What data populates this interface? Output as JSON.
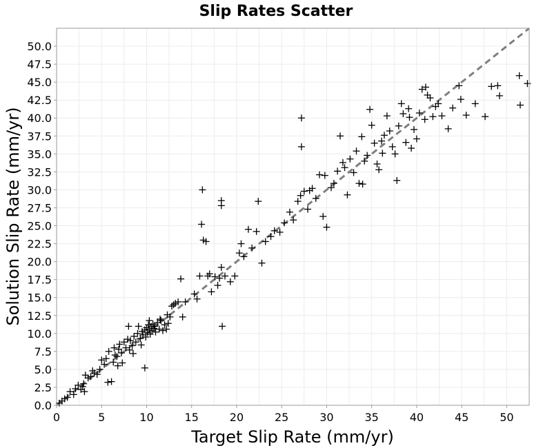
{
  "chart_data": {
    "type": "scatter",
    "title": "Slip Rates Scatter",
    "xlabel": "Target Slip Rate (mm/yr)",
    "ylabel": "Solution Slip Rate (mm/yr)",
    "xlim": [
      0,
      52.5
    ],
    "ylim": [
      0,
      52.5
    ],
    "xticks": [
      "0",
      "5",
      "10",
      "15",
      "20",
      "25",
      "30",
      "35",
      "40",
      "45",
      "50"
    ],
    "yticks": [
      "0.0",
      "2.5",
      "5.0",
      "7.5",
      "10.0",
      "12.5",
      "15.0",
      "17.5",
      "20.0",
      "22.5",
      "25.0",
      "27.5",
      "30.0",
      "32.5",
      "35.0",
      "37.5",
      "40.0",
      "42.5",
      "45.0",
      "47.5",
      "50.0"
    ],
    "grid": true,
    "marker": "plus",
    "marker_color": "#000000",
    "reference_line": {
      "style": "dashed",
      "color": "#7f7f7f",
      "from": [
        0,
        0
      ],
      "to": [
        52.5,
        52.5
      ]
    },
    "points": [
      [
        0.3,
        0.3
      ],
      [
        0.6,
        0.6
      ],
      [
        0.9,
        0.9
      ],
      [
        1.2,
        1.1
      ],
      [
        1.5,
        1.9
      ],
      [
        1.9,
        1.5
      ],
      [
        2.1,
        2.3
      ],
      [
        2.4,
        2.8
      ],
      [
        2.7,
        2.2
      ],
      [
        3.0,
        3.0
      ],
      [
        3.2,
        4.2
      ],
      [
        3.5,
        3.8
      ],
      [
        3.8,
        4.0
      ],
      [
        3.1,
        1.9
      ],
      [
        4.2,
        4.5
      ],
      [
        4.5,
        4.3
      ],
      [
        4.8,
        5.0
      ],
      [
        5.0,
        6.3
      ],
      [
        5.3,
        5.7
      ],
      [
        5.5,
        6.5
      ],
      [
        5.8,
        7.5
      ],
      [
        5.7,
        3.2
      ],
      [
        6.1,
        3.3
      ],
      [
        6.3,
        6.0
      ],
      [
        6.5,
        7.0
      ],
      [
        6.7,
        6.8
      ],
      [
        6.9,
        7.8
      ],
      [
        7.0,
        8.5
      ],
      [
        7.2,
        7.3
      ],
      [
        7.5,
        8.8
      ],
      [
        7.7,
        8.0
      ],
      [
        7.9,
        9.2
      ],
      [
        8.0,
        11.0
      ],
      [
        8.2,
        9.0
      ],
      [
        8.4,
        8.3
      ],
      [
        8.6,
        9.6
      ],
      [
        8.8,
        8.8
      ],
      [
        9.0,
        10.0
      ],
      [
        9.1,
        11.0
      ],
      [
        9.3,
        9.3
      ],
      [
        9.5,
        10.3
      ],
      [
        9.6,
        9.8
      ],
      [
        9.8,
        10.5
      ],
      [
        9.9,
        9.5
      ],
      [
        10.0,
        10.8
      ],
      [
        10.1,
        10.1
      ],
      [
        10.2,
        11.2
      ],
      [
        10.3,
        10.6
      ],
      [
        10.4,
        9.9
      ],
      [
        10.5,
        11.0
      ],
      [
        10.6,
        10.4
      ],
      [
        10.7,
        11.3
      ],
      [
        10.8,
        10.7
      ],
      [
        10.9,
        11.0
      ],
      [
        11.0,
        10.2
      ],
      [
        11.2,
        11.5
      ],
      [
        11.4,
        10.6
      ],
      [
        11.6,
        11.8
      ],
      [
        11.8,
        10.4
      ],
      [
        12.0,
        11.2
      ],
      [
        12.2,
        10.6
      ],
      [
        12.4,
        11.4
      ],
      [
        12.6,
        12.3
      ],
      [
        12.8,
        13.8
      ],
      [
        13.0,
        14.0
      ],
      [
        13.2,
        14.2
      ],
      [
        13.5,
        14.4
      ],
      [
        13.8,
        17.6
      ],
      [
        14.0,
        12.3
      ],
      [
        14.3,
        14.4
      ],
      [
        8.5,
        7.2
      ],
      [
        7.3,
        5.9
      ],
      [
        6.8,
        5.5
      ],
      [
        9.8,
        5.2
      ],
      [
        12.3,
        12.6
      ],
      [
        11.5,
        12.0
      ],
      [
        10.3,
        11.8
      ],
      [
        9.4,
        8.4
      ],
      [
        8.1,
        7.7
      ],
      [
        6.4,
        8.0
      ],
      [
        4.0,
        4.8
      ],
      [
        2.9,
        2.6
      ],
      [
        15.3,
        15.5
      ],
      [
        15.6,
        14.8
      ],
      [
        15.9,
        18.0
      ],
      [
        16.1,
        25.2
      ],
      [
        16.2,
        30.0
      ],
      [
        16.3,
        23.0
      ],
      [
        16.6,
        22.8
      ],
      [
        16.8,
        18.0
      ],
      [
        17.0,
        18.3
      ],
      [
        17.2,
        15.8
      ],
      [
        17.6,
        17.9
      ],
      [
        17.9,
        16.7
      ],
      [
        18.1,
        17.7
      ],
      [
        18.3,
        19.2
      ],
      [
        18.3,
        28.5
      ],
      [
        18.3,
        27.8
      ],
      [
        18.4,
        11.0
      ],
      [
        18.7,
        18.0
      ],
      [
        19.3,
        17.2
      ],
      [
        19.8,
        18.0
      ],
      [
        20.3,
        21.2
      ],
      [
        20.5,
        22.5
      ],
      [
        20.8,
        20.7
      ],
      [
        21.3,
        24.5
      ],
      [
        21.7,
        21.9
      ],
      [
        22.2,
        24.2
      ],
      [
        22.4,
        28.4
      ],
      [
        22.8,
        19.8
      ],
      [
        23.2,
        22.8
      ],
      [
        23.8,
        23.5
      ],
      [
        24.2,
        24.3
      ],
      [
        24.8,
        24.1
      ],
      [
        25.3,
        25.4
      ],
      [
        25.9,
        26.9
      ],
      [
        26.3,
        25.8
      ],
      [
        26.8,
        28.4
      ],
      [
        27.1,
        29.2
      ],
      [
        27.2,
        40.0
      ],
      [
        27.2,
        36.0
      ],
      [
        27.5,
        29.8
      ],
      [
        27.9,
        27.3
      ],
      [
        28.4,
        30.2
      ],
      [
        28.8,
        28.8
      ],
      [
        29.2,
        32.1
      ],
      [
        29.6,
        26.3
      ],
      [
        30.0,
        24.8
      ],
      [
        30.5,
        30.3
      ],
      [
        30.8,
        30.9
      ],
      [
        31.2,
        32.6
      ],
      [
        31.5,
        37.5
      ],
      [
        31.8,
        33.8
      ],
      [
        32.3,
        29.3
      ],
      [
        32.6,
        34.3
      ],
      [
        33.0,
        32.4
      ],
      [
        33.3,
        35.4
      ],
      [
        33.6,
        30.9
      ],
      [
        33.9,
        37.4
      ],
      [
        34.2,
        34.0
      ],
      [
        34.5,
        34.8
      ],
      [
        34.8,
        41.2
      ],
      [
        35.0,
        39.0
      ],
      [
        35.3,
        36.5
      ],
      [
        35.6,
        33.6
      ],
      [
        35.8,
        32.8
      ],
      [
        36.1,
        36.8
      ],
      [
        36.4,
        37.6
      ],
      [
        36.7,
        40.3
      ],
      [
        37.0,
        38.2
      ],
      [
        37.3,
        36.0
      ],
      [
        37.6,
        35.0
      ],
      [
        37.8,
        31.3
      ],
      [
        38.0,
        38.9
      ],
      [
        38.3,
        42.0
      ],
      [
        38.5,
        40.6
      ],
      [
        38.8,
        36.6
      ],
      [
        39.1,
        41.3
      ],
      [
        39.4,
        35.8
      ],
      [
        39.7,
        38.4
      ],
      [
        40.0,
        37.1
      ],
      [
        40.3,
        40.7
      ],
      [
        40.6,
        44.0
      ],
      [
        40.9,
        39.8
      ],
      [
        41.2,
        43.2
      ],
      [
        41.5,
        42.8
      ],
      [
        41.8,
        40.2
      ],
      [
        42.1,
        41.6
      ],
      [
        42.4,
        42.0
      ],
      [
        42.8,
        40.3
      ],
      [
        43.5,
        38.5
      ],
      [
        44.7,
        44.5
      ],
      [
        44.9,
        42.6
      ],
      [
        45.5,
        40.4
      ],
      [
        46.5,
        42.0
      ],
      [
        47.6,
        40.2
      ],
      [
        48.3,
        44.4
      ],
      [
        49.0,
        44.5
      ],
      [
        49.2,
        43.1
      ],
      [
        51.4,
        45.9
      ],
      [
        51.5,
        41.8
      ],
      [
        52.3,
        44.8
      ],
      [
        44.0,
        41.4
      ],
      [
        41.0,
        44.3
      ],
      [
        39.2,
        40.1
      ],
      [
        36.2,
        35.1
      ],
      [
        34.0,
        30.8
      ],
      [
        32.0,
        33.1
      ],
      [
        29.8,
        32.0
      ],
      [
        28.1,
        29.9
      ]
    ]
  }
}
